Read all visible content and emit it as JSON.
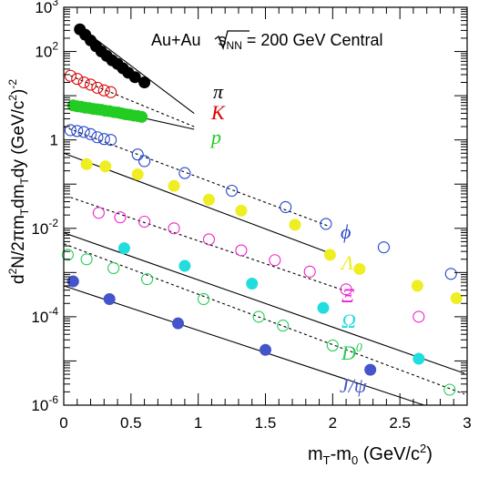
{
  "chart_data": {
    "type": "scatter",
    "title": "Au+Au √s_NN = 200 GeV Central",
    "title_parts": {
      "prefix": "Au+Au ",
      "root": "s",
      "sub": "NN",
      "suffix": " = 200 GeV Central"
    },
    "xlabel": "m_T-m_0 (GeV/c^2)",
    "xlabel_parts": {
      "a": "m",
      "a_sub": "T",
      "b": "-m",
      "b_sub": "0",
      "c": " (GeV/c",
      "c_sup": "2",
      "d": ")"
    },
    "ylabel": "d^2N/2πm_Tdm_Tdy (GeV/c^2)^-2",
    "ylabel_parts": {
      "p1": "d",
      "s1": "2",
      "p2": "N/2πm",
      "b1": "T",
      "p3": "dm",
      "b2": "T",
      "p4": "dy (GeV/c",
      "s2": "2",
      "p5": ")",
      "s3": "-2"
    },
    "xlim": [
      0,
      3
    ],
    "ylim_log10": [
      -6,
      3
    ],
    "y_scale": "log",
    "x_ticks": [
      "0",
      "0.5",
      "1",
      "1.5",
      "2",
      "2.5",
      "3"
    ],
    "x_tick_values": [
      0,
      0.5,
      1,
      1.5,
      2,
      2.5,
      3
    ],
    "y_ticks": [
      {
        "exp": -6,
        "text": "10",
        "sup": "-6"
      },
      {
        "exp": -4,
        "text": "10",
        "sup": "-4"
      },
      {
        "exp": -2,
        "text": "10",
        "sup": "-2"
      },
      {
        "exp": 0,
        "text": "1",
        "sup": ""
      },
      {
        "exp": 2,
        "text": "10",
        "sup": "2"
      },
      {
        "exp": 3,
        "text": "10",
        "sup": "3"
      }
    ],
    "grid": false,
    "series": [
      {
        "name": "π",
        "color": "#000000",
        "marker": "filled",
        "x": [
          0.12,
          0.16,
          0.2,
          0.24,
          0.28,
          0.32,
          0.36,
          0.4,
          0.44,
          0.48,
          0.53,
          0.6
        ],
        "logy": [
          2.5,
          2.38,
          2.25,
          2.12,
          2.0,
          1.9,
          1.8,
          1.72,
          1.62,
          1.52,
          1.42,
          1.3
        ],
        "fit_logx": [
          0.12,
          0.97
        ],
        "fit_logy": [
          2.55,
          0.6
        ],
        "fit_style": "solid"
      },
      {
        "name": "K",
        "color": "#dd0000",
        "marker": "open",
        "x": [
          0.05,
          0.1,
          0.15,
          0.2,
          0.25,
          0.3,
          0.35
        ],
        "logy": [
          1.45,
          1.38,
          1.3,
          1.25,
          1.18,
          1.12,
          1.08
        ],
        "fit_logx": [
          0.05,
          0.97
        ],
        "fit_logy": [
          1.45,
          0.3
        ],
        "fit_style": "dashed"
      },
      {
        "name": "p",
        "color": "#22cc22",
        "marker": "filled",
        "x": [
          0.07,
          0.1,
          0.13,
          0.16,
          0.19,
          0.22,
          0.25,
          0.28,
          0.31,
          0.34,
          0.37,
          0.4,
          0.43,
          0.46,
          0.49,
          0.52,
          0.55,
          0.58
        ],
        "logy": [
          0.78,
          0.76,
          0.75,
          0.73,
          0.72,
          0.7,
          0.69,
          0.68,
          0.66,
          0.65,
          0.63,
          0.62,
          0.6,
          0.58,
          0.57,
          0.55,
          0.54,
          0.52
        ],
        "fit_logx": [
          0.07,
          0.97
        ],
        "fit_logy": [
          0.85,
          0.24
        ],
        "fit_style": "solid"
      },
      {
        "name": "φ",
        "color": "#2244cc",
        "marker": "open",
        "x": [
          0.05,
          0.1,
          0.15,
          0.2,
          0.25,
          0.3,
          0.35,
          0.55,
          0.6,
          0.9,
          1.25,
          1.65,
          1.95,
          2.38,
          2.88
        ],
        "logy": [
          0.22,
          0.2,
          0.18,
          0.13,
          0.06,
          0.02,
          0.0,
          -0.33,
          -0.48,
          -0.75,
          -1.15,
          -1.52,
          -1.9,
          -2.43,
          -3.03
        ],
        "fit_logx": [
          0.0,
          1.97
        ],
        "fit_logy": [
          0.3,
          -1.95
        ],
        "fit_style": "dashed"
      },
      {
        "name": "Λ",
        "color": "#eeee22",
        "marker": "filled",
        "x": [
          0.17,
          0.31,
          0.55,
          0.82,
          1.08,
          1.32,
          1.72,
          1.98,
          2.2,
          2.63,
          2.92
        ],
        "logy": [
          -0.55,
          -0.6,
          -0.78,
          -1.04,
          -1.35,
          -1.6,
          -1.92,
          -2.6,
          -2.92,
          -3.3,
          -3.58
        ],
        "fit_logx": [
          0.0,
          1.97
        ],
        "fit_logy": [
          -0.3,
          -2.55
        ],
        "fit_style": "solid"
      },
      {
        "name": "Ξ",
        "color": "#ee22cc",
        "marker": "open",
        "x": [
          0.26,
          0.42,
          0.6,
          0.82,
          1.08,
          1.32,
          1.57,
          1.83,
          2.1,
          2.64
        ],
        "logy": [
          -1.65,
          -1.75,
          -1.85,
          -2.0,
          -2.25,
          -2.5,
          -2.72,
          -2.98,
          -3.38,
          -4.0
        ],
        "fit_logx": [
          0.05,
          2.08
        ],
        "fit_logy": [
          -1.3,
          -3.4
        ],
        "fit_style": "dashed"
      },
      {
        "name": "Ω",
        "color": "#22dddd",
        "marker": "filled",
        "x": [
          0.45,
          0.9,
          1.4,
          1.93,
          2.64
        ],
        "logy": [
          -2.45,
          -2.85,
          -3.25,
          -3.8,
          -4.95
        ],
        "fit_logx": [
          0.0,
          2.98
        ],
        "fit_logy": [
          -2.1,
          -5.28
        ],
        "fit_style": "solid"
      },
      {
        "name": "D^0",
        "color": "#22cc55",
        "marker": "open",
        "x": [
          0.03,
          0.17,
          0.37,
          0.62,
          1.04,
          1.45,
          1.63,
          2.0,
          2.87
        ],
        "logy": [
          -2.6,
          -2.7,
          -2.9,
          -3.15,
          -3.6,
          -4.0,
          -4.2,
          -4.65,
          -5.65
        ],
        "fit_logx": [
          0.0,
          2.98
        ],
        "fit_logy": [
          -2.35,
          -5.75
        ],
        "fit_style": "dashed"
      },
      {
        "name": "J/ψ",
        "color": "#4455cc",
        "marker": "filled",
        "x": [
          0.07,
          0.34,
          0.85,
          1.5,
          2.28
        ],
        "logy": [
          -3.2,
          -3.6,
          -4.15,
          -4.75,
          -5.2
        ],
        "fit_logx": [
          0.0,
          2.68
        ],
        "fit_logy": [
          -3.3,
          -6.0
        ],
        "fit_style": "solid"
      }
    ],
    "labels": [
      {
        "text": "π",
        "color": "#000000"
      },
      {
        "text": "K",
        "color": "#dd0000"
      },
      {
        "text": "p",
        "color": "#22cc22"
      },
      {
        "text": "ϕ",
        "color": "#2244cc"
      },
      {
        "text": "Λ",
        "color": "#eeee22"
      },
      {
        "text": "Ξ",
        "color": "#ee22cc"
      },
      {
        "text": "Ω",
        "color": "#22dddd"
      },
      {
        "text": "D",
        "sup": "0",
        "color": "#22cc55"
      },
      {
        "text": "J/ψ",
        "color": "#4455cc"
      }
    ]
  }
}
